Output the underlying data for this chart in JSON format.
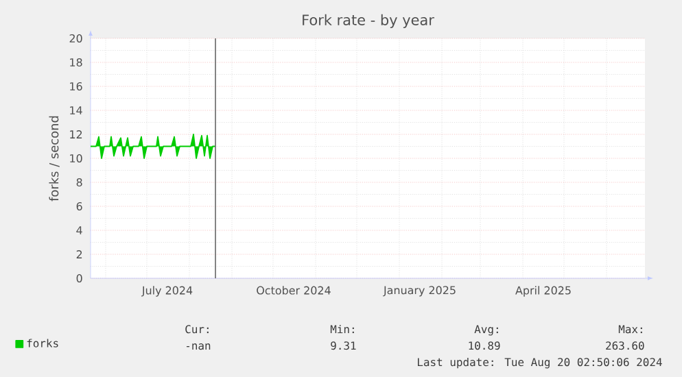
{
  "chart_data": {
    "type": "line",
    "title": "Fork rate - by year",
    "ylabel": "forks / second",
    "x": [
      "2024-05-21",
      "2024-05-25",
      "2024-05-27",
      "2024-05-29",
      "2024-05-31",
      "2024-06-04",
      "2024-06-05",
      "2024-06-07",
      "2024-06-09",
      "2024-06-12",
      "2024-06-14",
      "2024-06-17",
      "2024-06-19",
      "2024-06-21",
      "2024-06-25",
      "2024-06-27",
      "2024-06-29",
      "2024-07-01",
      "2024-07-08",
      "2024-07-09",
      "2024-07-11",
      "2024-07-13",
      "2024-07-19",
      "2024-07-21",
      "2024-07-23",
      "2024-07-25",
      "2024-08-02",
      "2024-08-04",
      "2024-08-06",
      "2024-08-08",
      "2024-08-10",
      "2024-08-12",
      "2024-08-14",
      "2024-08-16",
      "2024-08-18",
      "2024-08-20"
    ],
    "series": [
      {
        "name": "forks",
        "color": "#00cc00",
        "values": [
          11.0,
          11.0,
          11.8,
          10.0,
          11.0,
          11.0,
          11.8,
          10.2,
          11.0,
          11.7,
          10.2,
          11.7,
          10.2,
          11.0,
          11.0,
          11.8,
          10.0,
          11.0,
          11.0,
          11.8,
          10.2,
          11.0,
          11.0,
          11.8,
          10.2,
          11.0,
          11.0,
          12.0,
          10.0,
          11.0,
          11.9,
          10.2,
          11.9,
          10.0,
          11.0,
          11.0
        ]
      }
    ],
    "xlim": [
      "2024-05-21",
      "2025-06-29"
    ],
    "xticks": [
      {
        "value": "2024-07-16",
        "label": "July 2024"
      },
      {
        "value": "2024-10-16",
        "label": "October 2024"
      },
      {
        "value": "2025-01-16",
        "label": "January 2025"
      },
      {
        "value": "2025-04-16",
        "label": "April 2025"
      }
    ],
    "ylim": [
      0,
      20
    ],
    "yticks": [
      0,
      2,
      4,
      6,
      8,
      10,
      12,
      14,
      16,
      18,
      20
    ],
    "grid": true,
    "legend": "bottom left",
    "marker": "none",
    "line_style": "solid",
    "ref_lines": [
      {
        "axis": "x",
        "value": "2024-08-20",
        "color": "#666666"
      }
    ],
    "annotations": [
      "Cur:",
      "Min:",
      "Avg:",
      "Max:",
      "-nan",
      "9.31",
      "10.89",
      "263.60",
      "Last update: Tue Aug 20 02:50:06 2024"
    ]
  }
}
